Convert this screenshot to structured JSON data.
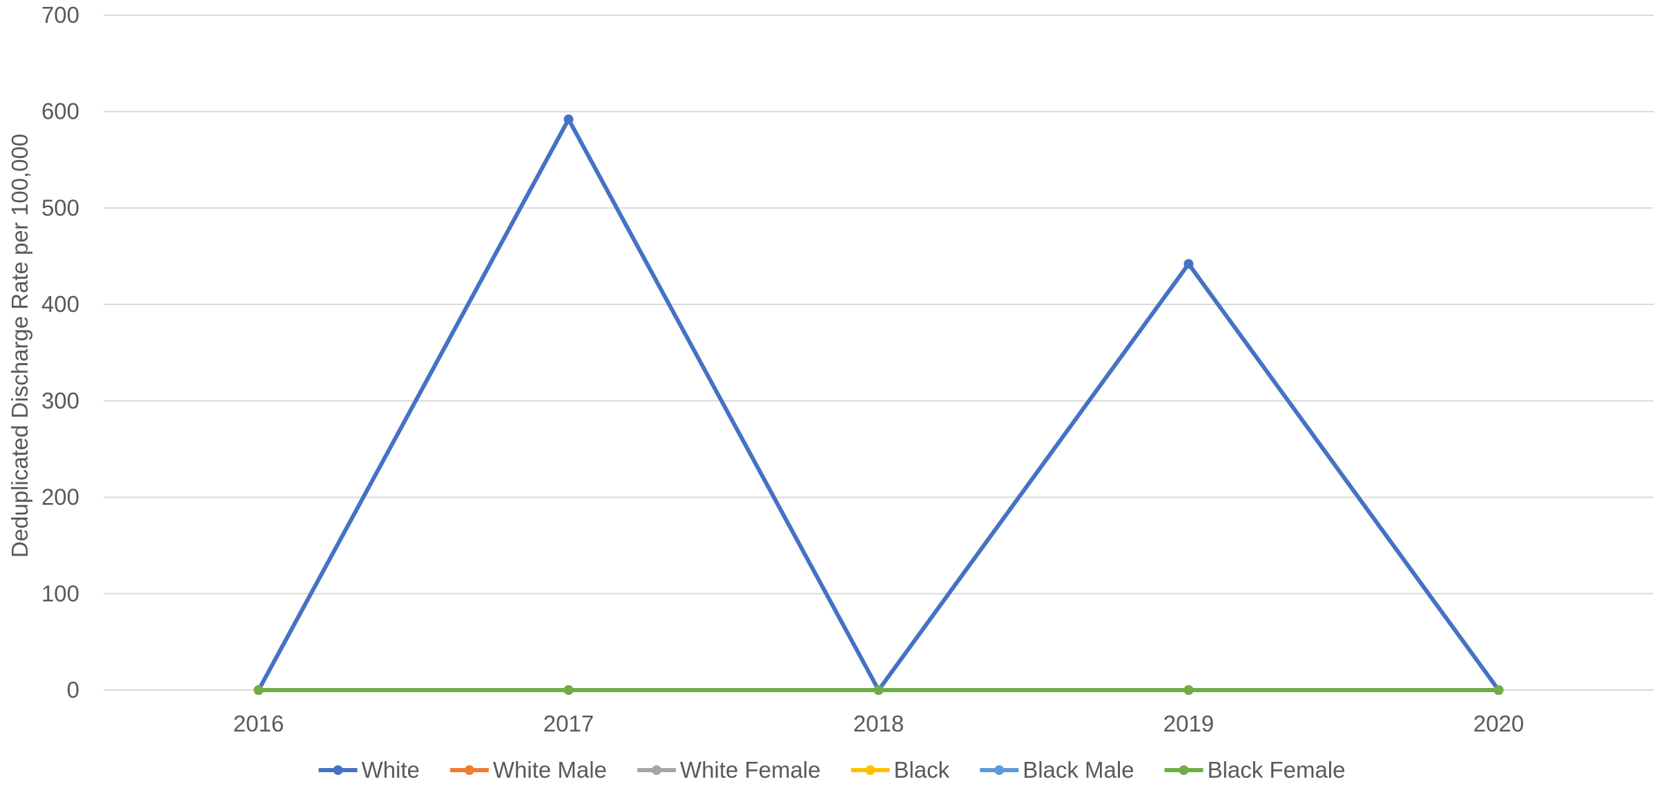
{
  "chart_data": {
    "type": "line",
    "title": "",
    "xlabel": "",
    "ylabel": "Deduplicated Discharge Rate per 100,000",
    "categories": [
      "2016",
      "2017",
      "2018",
      "2019",
      "2020"
    ],
    "ylim": [
      0,
      700
    ],
    "yticks": [
      0,
      100,
      200,
      300,
      400,
      500,
      600,
      700
    ],
    "grid": true,
    "legend_position": "bottom",
    "series": [
      {
        "name": "White",
        "color": "#4472C4",
        "values": [
          0,
          592,
          0,
          442,
          0
        ]
      },
      {
        "name": "White Male",
        "color": "#ED7D31",
        "values": [
          0,
          0,
          0,
          0,
          0
        ]
      },
      {
        "name": "White Female",
        "color": "#A5A5A5",
        "values": [
          0,
          0,
          0,
          0,
          0
        ]
      },
      {
        "name": "Black",
        "color": "#FFC000",
        "values": [
          0,
          0,
          0,
          0,
          0
        ]
      },
      {
        "name": "Black Male",
        "color": "#5B9BD5",
        "values": [
          0,
          0,
          0,
          0,
          0
        ]
      },
      {
        "name": "Black Female",
        "color": "#70AD47",
        "values": [
          0,
          0,
          0,
          0,
          0
        ]
      }
    ]
  }
}
